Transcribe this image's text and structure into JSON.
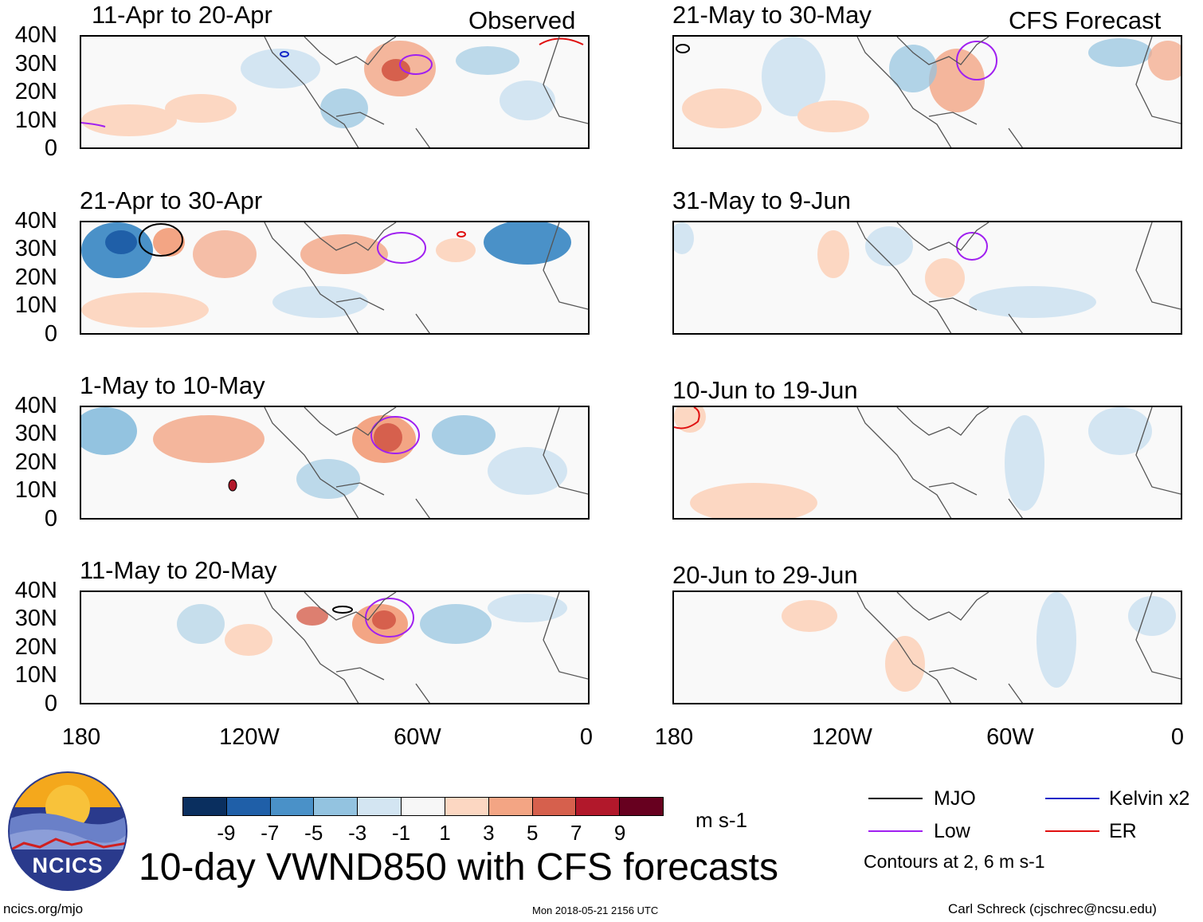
{
  "observed_label": "Observed",
  "forecast_label": "CFS Forecast",
  "y_ticks": [
    "40N",
    "30N",
    "20N",
    "10N",
    "0"
  ],
  "x_ticks": [
    "180",
    "120W",
    "60W",
    "0"
  ],
  "panels": [
    {
      "title": "11-Apr to 20-Apr"
    },
    {
      "title": "21-Apr to 30-Apr"
    },
    {
      "title": "1-May to 10-May"
    },
    {
      "title": "11-May to 20-May"
    },
    {
      "title": "21-May to 30-May"
    },
    {
      "title": "31-May to 9-Jun"
    },
    {
      "title": "10-Jun to 19-Jun"
    },
    {
      "title": "20-Jun to 29-Jun"
    }
  ],
  "colorbar": {
    "colors": [
      "#0a2f5f",
      "#1f5fa8",
      "#4a91c8",
      "#93c3e0",
      "#d3e5f2",
      "#f7f7f7",
      "#fcd7c2",
      "#f3a584",
      "#d6604d",
      "#b2182b",
      "#67001f"
    ],
    "labels": [
      "-9",
      "-7",
      "-5",
      "-3",
      "-1",
      "1",
      "3",
      "5",
      "7",
      "9"
    ],
    "unit": "m s-1"
  },
  "legend": {
    "mjo": "MJO",
    "kelvin": "Kelvin x2",
    "low": "Low",
    "er": "ER",
    "colors": {
      "mjo": "#000000",
      "kelvin": "#1428c8",
      "low": "#a020f0",
      "er": "#e01010"
    },
    "contours_note": "Contours at 2, 6 m s-1"
  },
  "main_title": "10-day VWND850 with CFS forecasts",
  "logo_text": "NCICS",
  "website": "ncics.org/mjo",
  "timestamp": "Mon 2018-05-21 2156 UTC",
  "author": "Carl Schreck (cjschrec@ncsu.edu)"
}
